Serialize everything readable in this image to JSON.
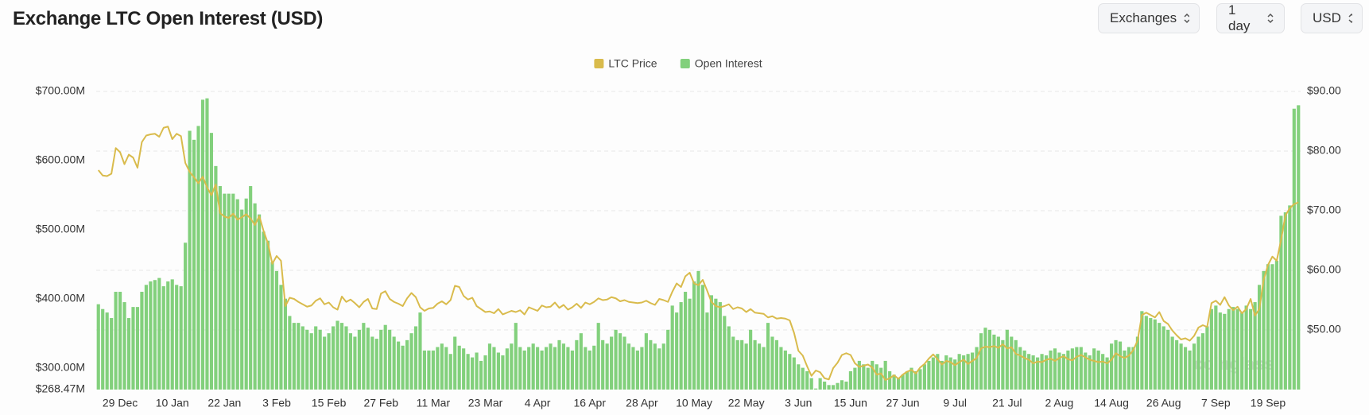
{
  "controls": [
    "Exchanges",
    "1 day",
    "USD"
  ],
  "watermark": "coinglass",
  "chart_data": {
    "type": "bar",
    "title": "Exchange LTC Open Interest (USD)",
    "categories": [
      null,
      null,
      null,
      null,
      null,
      "29 Dec",
      null,
      null,
      null,
      null,
      null,
      null,
      null,
      null,
      null,
      null,
      null,
      "10 Jan",
      null,
      null,
      null,
      null,
      null,
      null,
      null,
      null,
      null,
      null,
      null,
      "22 Jan",
      null,
      null,
      null,
      null,
      null,
      null,
      null,
      null,
      null,
      null,
      null,
      "3 Feb",
      null,
      null,
      null,
      null,
      null,
      null,
      null,
      null,
      null,
      null,
      null,
      "15 Feb",
      null,
      null,
      null,
      null,
      null,
      null,
      null,
      null,
      null,
      null,
      null,
      "27 Feb",
      null,
      null,
      null,
      null,
      null,
      null,
      null,
      null,
      null,
      null,
      null,
      "11 Mar",
      null,
      null,
      null,
      null,
      null,
      null,
      null,
      null,
      null,
      null,
      null,
      "23 Mar",
      null,
      null,
      null,
      null,
      null,
      null,
      null,
      null,
      null,
      null,
      null,
      "4 Apr",
      null,
      null,
      null,
      null,
      null,
      null,
      null,
      null,
      null,
      null,
      null,
      "16 Apr",
      null,
      null,
      null,
      null,
      null,
      null,
      null,
      null,
      null,
      null,
      null,
      "28 Apr",
      null,
      null,
      null,
      null,
      null,
      null,
      null,
      null,
      null,
      null,
      null,
      "10 May",
      null,
      null,
      null,
      null,
      null,
      null,
      null,
      null,
      null,
      null,
      null,
      "22 May",
      null,
      null,
      null,
      null,
      null,
      null,
      null,
      null,
      null,
      null,
      null,
      "3 Jun",
      null,
      null,
      null,
      null,
      null,
      null,
      null,
      null,
      null,
      null,
      null,
      "15 Jun",
      null,
      null,
      null,
      null,
      null,
      null,
      null,
      null,
      null,
      null,
      null,
      "27 Jun",
      null,
      null,
      null,
      null,
      null,
      null,
      null,
      null,
      null,
      null,
      null,
      "9 Jul",
      null,
      null,
      null,
      null,
      null,
      null,
      null,
      null,
      null,
      null,
      null,
      "21 Jul",
      null,
      null,
      null,
      null,
      null,
      null,
      null,
      null,
      null,
      null,
      null,
      "2 Aug",
      null,
      null,
      null,
      null,
      null,
      null,
      null,
      null,
      null,
      null,
      null,
      "14 Aug",
      null,
      null,
      null,
      null,
      null,
      null,
      null,
      null,
      null,
      null,
      null,
      "26 Aug",
      null,
      null,
      null,
      null,
      null,
      null,
      null,
      null,
      null,
      null,
      null,
      "7 Sep",
      null,
      null,
      null,
      null,
      null,
      null,
      null,
      null,
      null,
      null,
      null,
      "19 Sep",
      null,
      null,
      null,
      null,
      null,
      null,
      null
    ],
    "series": [
      {
        "name": "LTC Price",
        "color": "#d9bb4c",
        "type": "line",
        "axis": "y2",
        "values": [
          76.8,
          75.9,
          75.8,
          76.2,
          80.5,
          79.8,
          77.8,
          79.4,
          78.9,
          77.2,
          81.5,
          82.6,
          82.8,
          82.9,
          82.4,
          83.9,
          84.1,
          82.0,
          82.9,
          82.5,
          78.0,
          76.5,
          75.6,
          74.6,
          75.7,
          73.9,
          72.6,
          74.4,
          69.6,
          69.0,
          68.8,
          69.5,
          68.5,
          68.9,
          69.4,
          68.7,
          67.6,
          69.1,
          66.6,
          64.5,
          61.1,
          62.4,
          61.6,
          54.0,
          55.4,
          55.2,
          54.7,
          54.3,
          53.9,
          54.1,
          54.9,
          55.3,
          54.3,
          54.6,
          53.8,
          53.4,
          55.6,
          54.7,
          55.1,
          54.5,
          53.8,
          54.7,
          55.2,
          53.6,
          53.5,
          56.1,
          56.5,
          55.2,
          54.7,
          54.4,
          54.0,
          55.3,
          56.2,
          55.5,
          53.8,
          53.2,
          53.6,
          53.7,
          54.4,
          54.8,
          54.3,
          55.0,
          57.4,
          57.2,
          55.7,
          55.1,
          55.4,
          54.0,
          53.5,
          53.0,
          53.1,
          52.8,
          53.5,
          52.6,
          52.9,
          53.2,
          53.0,
          53.3,
          52.6,
          53.8,
          53.5,
          53.2,
          54.1,
          53.8,
          53.9,
          54.6,
          53.7,
          54.2,
          53.4,
          53.8,
          54.4,
          53.7,
          54.6,
          54.3,
          54.7,
          55.3,
          55.0,
          55.1,
          55.5,
          55.3,
          54.8,
          55.0,
          54.7,
          54.6,
          54.5,
          54.6,
          54.9,
          54.5,
          54.2,
          55.2,
          55.0,
          54.7,
          56.4,
          57.8,
          57.2,
          59.0,
          59.6,
          57.8,
          57.5,
          58.4,
          56.6,
          54.7,
          54.0,
          53.8,
          54.0,
          54.3,
          53.5,
          53.8,
          53.6,
          53.0,
          53.5,
          52.9,
          52.8,
          52.7,
          52.1,
          52.3,
          51.9,
          52.0,
          51.9,
          51.6,
          49.5,
          46.5,
          45.7,
          43.9,
          42.3,
          43.2,
          42.9,
          41.9,
          41.7,
          43.6,
          44.5,
          45.8,
          46.1,
          45.8,
          44.4,
          43.8,
          44.0,
          44.2,
          43.7,
          42.5,
          42.7,
          41.6,
          41.9,
          42.4,
          41.8,
          42.5,
          43.0,
          43.3,
          42.7,
          43.7,
          44.3,
          45.2,
          45.9,
          45.1,
          44.2,
          44.8,
          44.6,
          44.1,
          44.6,
          45.0,
          44.3,
          44.8,
          45.3,
          46.9,
          47.2,
          47.1,
          47.3,
          47.0,
          47.6,
          46.9,
          47.1,
          46.0,
          45.7,
          45.3,
          45.0,
          44.4,
          44.7,
          44.6,
          45.0,
          45.2,
          44.8,
          45.3,
          45.6,
          45.1,
          44.9,
          45.5,
          45.8,
          45.4,
          45.0,
          44.8,
          44.6,
          44.7,
          44.4,
          45.0,
          46.1,
          45.6,
          45.3,
          45.7,
          46.6,
          48.2,
          52.5,
          52.9,
          52.5,
          52.1,
          53.0,
          51.5,
          51.0,
          49.9,
          49.1,
          48.4,
          48.6,
          48.2,
          49.0,
          50.4,
          50.8,
          50.5,
          54.5,
          54.9,
          54.2,
          55.5,
          54.1,
          53.3,
          53.9,
          52.8,
          53.5,
          55.2,
          52.4,
          53.5,
          58.4,
          60.9,
          62.3,
          61.6,
          65.1,
          69.2,
          70.4,
          71.1,
          71.4
        ]
      },
      {
        "name": "Open Interest",
        "color": "#82d07c",
        "values": [
          392,
          385,
          380,
          372,
          410,
          410,
          395,
          372,
          388,
          388,
          410,
          420,
          425,
          427,
          430,
          418,
          425,
          428,
          420,
          418,
          481,
          643,
          630,
          650,
          688,
          690,
          640,
          592,
          563,
          552,
          552,
          552,
          544,
          529,
          545,
          563,
          538,
          522,
          497,
          484,
          453,
          440,
          420,
          400,
          375,
          365,
          365,
          360,
          355,
          350,
          360,
          355,
          345,
          350,
          360,
          368,
          365,
          360,
          350,
          345,
          355,
          365,
          358,
          345,
          342,
          355,
          362,
          355,
          345,
          338,
          332,
          340,
          350,
          360,
          380,
          325,
          325,
          325,
          330,
          335,
          330,
          320,
          345,
          332,
          328,
          320,
          315,
          322,
          310,
          318,
          335,
          330,
          322,
          318,
          328,
          335,
          365,
          330,
          325,
          330,
          335,
          330,
          325,
          330,
          335,
          330,
          340,
          335,
          330,
          325,
          340,
          350,
          330,
          325,
          332,
          365,
          340,
          335,
          345,
          355,
          350,
          345,
          335,
          330,
          325,
          330,
          350,
          340,
          335,
          328,
          335,
          355,
          390,
          380,
          395,
          410,
          400,
          425,
          440,
          420,
          380,
          405,
          400,
          395,
          375,
          360,
          345,
          340,
          340,
          335,
          355,
          340,
          335,
          330,
          365,
          345,
          340,
          330,
          325,
          320,
          315,
          305,
          300,
          295,
          285,
          270,
          285,
          280,
          275,
          275,
          278,
          282,
          280,
          295,
          300,
          310,
          305,
          300,
          310,
          305,
          300,
          310,
          295,
          290,
          285,
          290,
          295,
          300,
          295,
          298,
          305,
          310,
          315,
          320,
          310,
          318,
          315,
          312,
          320,
          318,
          320,
          322,
          330,
          350,
          358,
          355,
          348,
          345,
          340,
          355,
          345,
          340,
          330,
          325,
          320,
          318,
          315,
          320,
          318,
          325,
          328,
          322,
          320,
          325,
          328,
          330,
          330,
          322,
          318,
          328,
          325,
          320,
          315,
          335,
          340,
          338,
          325,
          330,
          330,
          345,
          382,
          375,
          372,
          370,
          365,
          360,
          355,
          345,
          340,
          335,
          330,
          325,
          335,
          345,
          350,
          360,
          385,
          390,
          380,
          378,
          385,
          388,
          385,
          380,
          390,
          385,
          395,
          420,
          440,
          450,
          450,
          455,
          520,
          525,
          535,
          675,
          680
        ]
      }
    ],
    "ylim": [
      268.47,
      700
    ],
    "yticks": [
      {
        "value": 268.47,
        "label": "$268.47M"
      },
      {
        "value": 300,
        "label": "$300.00M"
      },
      {
        "value": 400,
        "label": "$400.00M"
      },
      {
        "value": 500,
        "label": "$500.00M"
      },
      {
        "value": 600,
        "label": "$600.00M"
      },
      {
        "value": 700,
        "label": "$700.00M"
      }
    ],
    "y2lim": [
      40,
      90
    ],
    "y2ticks": [
      {
        "value": 50,
        "label": "$50.00"
      },
      {
        "value": 60,
        "label": "$60.00"
      },
      {
        "value": 70,
        "label": "$70.00"
      },
      {
        "value": 80,
        "label": "$80.00"
      },
      {
        "value": 90,
        "label": "$90.00"
      }
    ],
    "grid": true,
    "legend": "top"
  }
}
